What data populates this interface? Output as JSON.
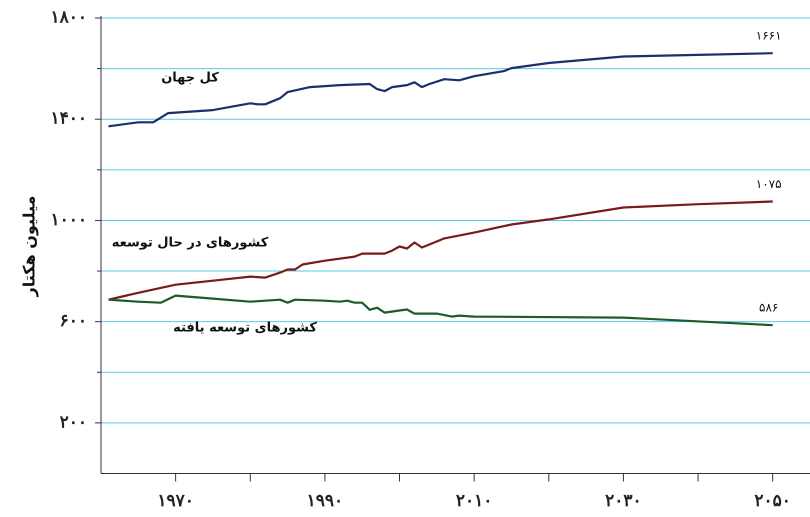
{
  "chart_data": {
    "type": "line",
    "ylabel": "میلیون هکتار",
    "xlim": [
      1960,
      2055
    ],
    "ylim": [
      0,
      1800
    ],
    "xticks": [
      {
        "value": 1970,
        "label": "۱۹۷۰"
      },
      {
        "value": 1990,
        "label": "۱۹۹۰"
      },
      {
        "value": 2010,
        "label": "۲۰۱۰"
      },
      {
        "value": 2030,
        "label": "۲۰۳۰"
      },
      {
        "value": 2050,
        "label": "۲۰۵۰"
      }
    ],
    "xminor": [
      1980,
      2000,
      2020,
      2040
    ],
    "yticks": [
      {
        "value": 200,
        "label": "۲۰۰"
      },
      {
        "value": 600,
        "label": "۶۰۰"
      },
      {
        "value": 1000,
        "label": "۱۰۰۰"
      },
      {
        "value": 1400,
        "label": "۱۴۰۰"
      },
      {
        "value": 1800,
        "label": "۱۸۰۰"
      }
    ],
    "yminor": [
      400,
      800,
      1200,
      1600
    ],
    "grid": true,
    "series": [
      {
        "name": "کل جهان",
        "color": "#1a2f6b",
        "x": [
          1961,
          1965,
          1967,
          1969,
          1975,
          1980,
          1981,
          1982,
          1984,
          1985,
          1988,
          1992,
          1996,
          1997,
          1998,
          1999,
          2001,
          2002,
          2003,
          2004,
          2006,
          2008,
          2010,
          2014,
          2015,
          2020,
          2030,
          2040,
          2050
        ],
        "values": [
          1372,
          1388,
          1388,
          1424,
          1436,
          1463,
          1459,
          1459,
          1483,
          1507,
          1527,
          1535,
          1539,
          1519,
          1511,
          1527,
          1535,
          1546,
          1527,
          1539,
          1558,
          1554,
          1570,
          1590,
          1602,
          1622,
          1648,
          1654,
          1661
        ],
        "value_labels": [
          null,
          null,
          null,
          null,
          null,
          null,
          null,
          null,
          null,
          null,
          null,
          null,
          null,
          null,
          null,
          null,
          null,
          null,
          null,
          null,
          null,
          null,
          null,
          null,
          null,
          null,
          null,
          null,
          "۱۶۶۱"
        ]
      },
      {
        "name": "کشورهای در حال توسعه",
        "color": "#7a1a1a",
        "x": [
          1961,
          1965,
          1970,
          1975,
          1980,
          1982,
          1984,
          1985,
          1986,
          1987,
          1990,
          1994,
          1995,
          1998,
          1999,
          2000,
          2001,
          2002,
          2003,
          2004,
          2006,
          2010,
          2015,
          2020,
          2030,
          2040,
          2050
        ],
        "values": [
          687,
          714,
          746,
          762,
          778,
          774,
          794,
          806,
          806,
          826,
          841,
          857,
          869,
          869,
          881,
          897,
          889,
          913,
          893,
          905,
          929,
          952,
          984,
          1004,
          1051,
          1064,
          1075
        ],
        "value_labels": [
          null,
          null,
          null,
          null,
          null,
          null,
          null,
          null,
          null,
          null,
          null,
          null,
          null,
          null,
          null,
          null,
          null,
          null,
          null,
          null,
          null,
          null,
          null,
          null,
          null,
          null,
          "۱۰۷۵"
        ]
      },
      {
        "name": "کشورهای توسعه یافته",
        "color": "#1f5a2a",
        "x": [
          1961,
          1965,
          1968,
          1970,
          1975,
          1980,
          1984,
          1985,
          1986,
          1990,
          1992,
          1993,
          1994,
          1995,
          1996,
          1997,
          1998,
          2000,
          2001,
          2002,
          2005,
          2007,
          2008,
          2010,
          2030,
          2050
        ],
        "values": [
          687,
          679,
          675,
          703,
          691,
          679,
          687,
          675,
          687,
          683,
          679,
          683,
          675,
          675,
          647,
          655,
          636,
          644,
          648,
          632,
          632,
          620,
          624,
          620,
          616,
          586
        ],
        "value_labels": [
          null,
          null,
          null,
          null,
          null,
          null,
          null,
          null,
          null,
          null,
          null,
          null,
          null,
          null,
          null,
          null,
          null,
          null,
          null,
          null,
          null,
          null,
          null,
          null,
          null,
          "۵۸۶"
        ]
      }
    ]
  }
}
